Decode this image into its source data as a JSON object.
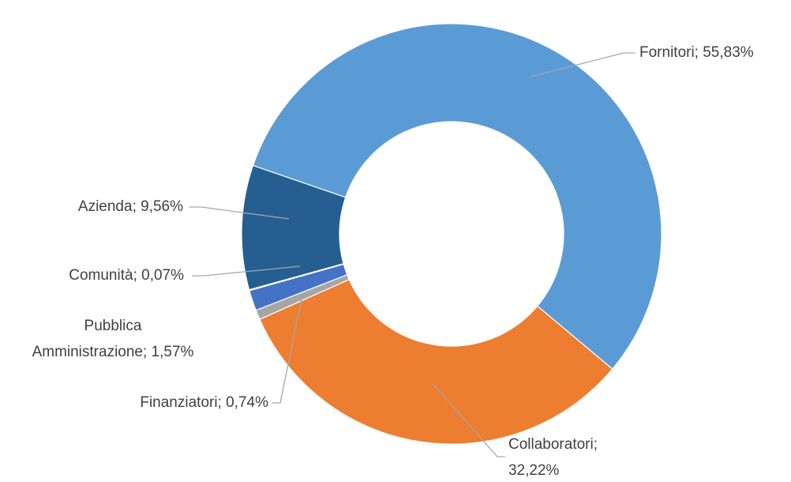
{
  "chart_data": {
    "type": "doughnut",
    "categories": [
      "Fornitori",
      "Collaboratori",
      "Finanziatori",
      "Pubblica Amministrazione",
      "Comunità",
      "Azienda"
    ],
    "values": [
      55.83,
      32.22,
      0.74,
      1.57,
      0.07,
      9.56
    ],
    "value_labels": [
      "Fornitori; 55,83%",
      "Collaboratori;\n32,22%",
      "Finanziatori; 0,74%",
      "Pubblica\nAmministrazione; 1,57%",
      "Comunità; 0,07%",
      "Azienda; 9,56%"
    ],
    "colors": [
      "#5b9bd5",
      "#ed7d31",
      "#a5a5a5",
      "#4472c4",
      "#70ad47",
      "#255e91"
    ]
  }
}
